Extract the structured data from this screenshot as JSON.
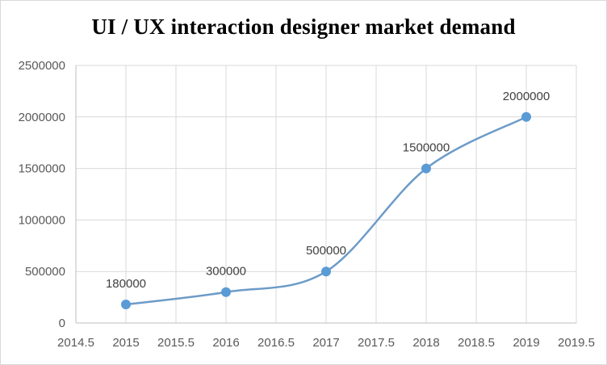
{
  "chart_data": {
    "type": "scatter",
    "title": "UI / UX interaction designer market demand",
    "xlabel": "",
    "ylabel": "",
    "xlim": [
      2014.5,
      2019.5
    ],
    "ylim": [
      0,
      2500000
    ],
    "x_ticks": [
      2014.5,
      2015,
      2015.5,
      2016,
      2016.5,
      2017,
      2017.5,
      2018,
      2018.5,
      2019,
      2019.5
    ],
    "y_ticks": [
      0,
      500000,
      1000000,
      1500000,
      2000000,
      2500000
    ],
    "grid": true,
    "legend": "none",
    "smooth_line": true,
    "series": [
      {
        "x": [
          2015,
          2016,
          2017,
          2018,
          2019
        ],
        "y": [
          180000,
          300000,
          500000,
          1500000,
          2000000
        ],
        "data_labels": [
          "180000",
          "300000",
          "500000",
          "1500000",
          "2000000"
        ],
        "color": "#5b9bd5",
        "line_color": "#6c9bc8"
      }
    ]
  }
}
